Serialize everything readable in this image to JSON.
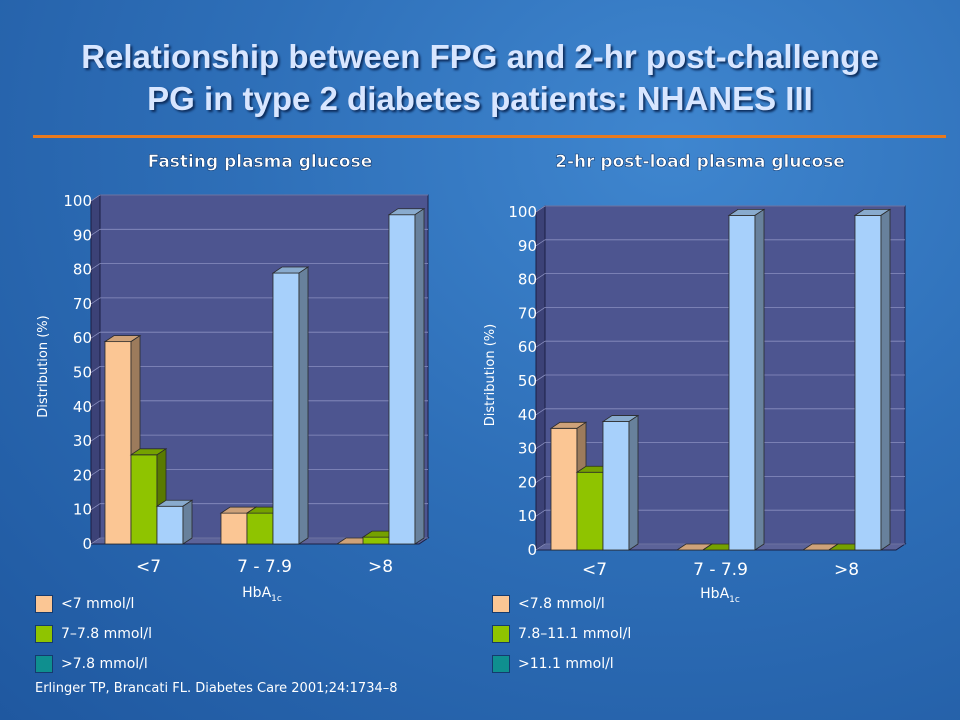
{
  "slide": {
    "title_line1": "Relationship between FPG and 2-hr post-challenge",
    "title_line2": "PG in type 2 diabetes patients: NHANES III",
    "citation": "Erlinger TP, Brancati FL. Diabetes Care 2001;24:1734–8"
  },
  "colors": {
    "series1": "#fbc694",
    "series2": "#8fc400",
    "series3": "#a7d0fb",
    "legend3": "#0f8f8f",
    "plot_back": "#4d5590"
  },
  "chart_data": [
    {
      "type": "bar",
      "title": "Fasting plasma glucose",
      "ylabel": "Distribution (%)",
      "xlabel": "HbA",
      "xlabel_sub": "1c",
      "categories": [
        "<7",
        "7 - 7.9",
        ">8"
      ],
      "ylim": [
        0,
        100
      ],
      "yticks": [
        "0",
        "10",
        "20",
        "30",
        "40",
        "50",
        "60",
        "70",
        "80",
        "90",
        "100"
      ],
      "grid": true,
      "legend_placement": "bottom-left",
      "series": [
        {
          "name": "<7 mmol/l",
          "values": [
            59,
            9,
            0
          ]
        },
        {
          "name": "7–7.8 mmol/l",
          "values": [
            26,
            9,
            2
          ]
        },
        {
          "name": ">7.8 mmol/l",
          "values": [
            11,
            79,
            96
          ]
        }
      ]
    },
    {
      "type": "bar",
      "title": "2-hr post-load plasma glucose",
      "ylabel": "Distribution (%)",
      "xlabel": "HbA",
      "xlabel_sub": "1c",
      "categories": [
        "<7",
        "7 - 7.9",
        ">8"
      ],
      "ylim": [
        0,
        100
      ],
      "yticks": [
        "0",
        "10",
        "20",
        "30",
        "40",
        "50",
        "60",
        "70",
        "80",
        "90",
        "100"
      ],
      "grid": true,
      "legend_placement": "bottom-left",
      "series": [
        {
          "name": "<7.8 mmol/l",
          "values": [
            36,
            0,
            0
          ]
        },
        {
          "name": "7.8–11.1 mmol/l",
          "values": [
            23,
            0,
            0
          ]
        },
        {
          "name": ">11.1 mmol/l",
          "values": [
            38,
            99,
            99
          ]
        }
      ]
    }
  ]
}
